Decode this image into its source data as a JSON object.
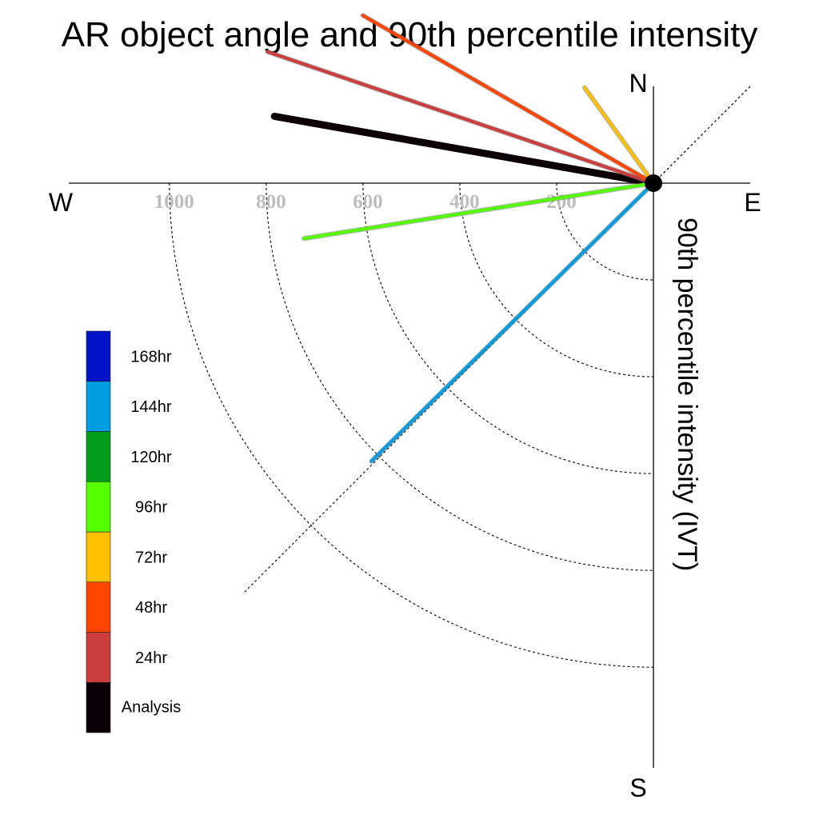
{
  "chart_data": {
    "type": "polar-vector",
    "title": "AR object angle and 90th percentile intensity",
    "axis_label": "90th percentile intensity (IVT)",
    "compass": {
      "north": "N",
      "south": "S",
      "east": "E",
      "west": "W"
    },
    "radial_ticks": [
      200,
      400,
      600,
      800,
      1000
    ],
    "radial_tick_labels": [
      "200",
      "400",
      "600",
      "800",
      "1000"
    ],
    "rmax": 1200,
    "grid": true,
    "legend_position": "left",
    "series": [
      {
        "name": "Analysis",
        "color": "#0b0006",
        "angle_deg": 170.0,
        "intensity": 795
      },
      {
        "name": "24hr",
        "color": "#cc3d3d",
        "angle_deg": 161.2,
        "intensity": 842
      },
      {
        "name": "48hr",
        "color": "#ff4500",
        "angle_deg": 150.0,
        "intensity": 693
      },
      {
        "name": "72hr",
        "color": "#ffc000",
        "angle_deg": 125.8,
        "intensity": 243
      },
      {
        "name": "96hr",
        "color": "#55ff00",
        "angle_deg": 189.0,
        "intensity": 731
      },
      {
        "name": "120hr",
        "color": "#009e1a",
        "angle_deg": null,
        "intensity": null
      },
      {
        "name": "144hr",
        "color": "#009ee0",
        "angle_deg": 224.6,
        "intensity": 818
      },
      {
        "name": "168hr",
        "color": "#0013c6",
        "angle_deg": null,
        "intensity": null
      }
    ]
  }
}
